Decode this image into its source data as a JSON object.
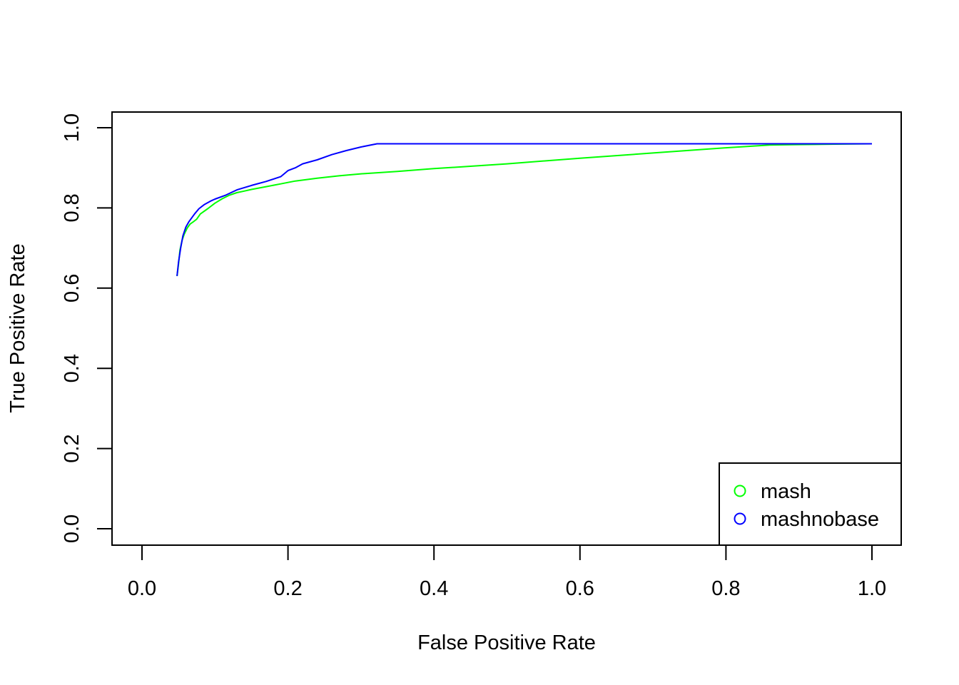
{
  "chart_data": {
    "type": "line",
    "title": "",
    "xlabel": "False Positive Rate",
    "ylabel": "True Positive Rate",
    "xlim": [
      0.0,
      1.0
    ],
    "ylim": [
      0.0,
      1.0
    ],
    "x_ticks": [
      "0.0",
      "0.2",
      "0.4",
      "0.6",
      "0.8",
      "1.0"
    ],
    "y_ticks": [
      "0.0",
      "0.2",
      "0.4",
      "0.6",
      "0.8",
      "1.0"
    ],
    "grid": false,
    "legend_position": "bottom-right",
    "series": [
      {
        "name": "mash",
        "color": "#00ff00",
        "x": [
          0.048,
          0.05,
          0.052,
          0.055,
          0.058,
          0.062,
          0.066,
          0.07,
          0.075,
          0.08,
          0.09,
          0.1,
          0.11,
          0.12,
          0.13,
          0.14,
          0.15,
          0.17,
          0.19,
          0.21,
          0.24,
          0.27,
          0.3,
          0.35,
          0.4,
          0.45,
          0.5,
          0.6,
          0.7,
          0.8,
          0.86,
          0.9,
          0.95,
          1.0
        ],
        "y": [
          0.63,
          0.66,
          0.695,
          0.72,
          0.735,
          0.75,
          0.76,
          0.765,
          0.772,
          0.785,
          0.798,
          0.812,
          0.823,
          0.832,
          0.838,
          0.842,
          0.846,
          0.853,
          0.86,
          0.867,
          0.874,
          0.88,
          0.885,
          0.891,
          0.898,
          0.904,
          0.91,
          0.924,
          0.937,
          0.95,
          0.957,
          0.958,
          0.959,
          0.96
        ]
      },
      {
        "name": "mashnobase",
        "color": "#0000ff",
        "x": [
          0.048,
          0.05,
          0.053,
          0.056,
          0.06,
          0.064,
          0.068,
          0.072,
          0.078,
          0.085,
          0.095,
          0.1,
          0.115,
          0.13,
          0.15,
          0.17,
          0.19,
          0.2,
          0.21,
          0.22,
          0.24,
          0.26,
          0.28,
          0.3,
          0.322,
          0.4,
          0.5,
          0.6,
          0.7,
          0.8,
          0.9,
          1.0
        ],
        "y": [
          0.63,
          0.665,
          0.7,
          0.73,
          0.752,
          0.765,
          0.775,
          0.785,
          0.798,
          0.808,
          0.818,
          0.822,
          0.832,
          0.845,
          0.856,
          0.866,
          0.878,
          0.893,
          0.9,
          0.91,
          0.92,
          0.933,
          0.943,
          0.952,
          0.96,
          0.96,
          0.96,
          0.96,
          0.96,
          0.96,
          0.96,
          0.96
        ]
      }
    ]
  }
}
